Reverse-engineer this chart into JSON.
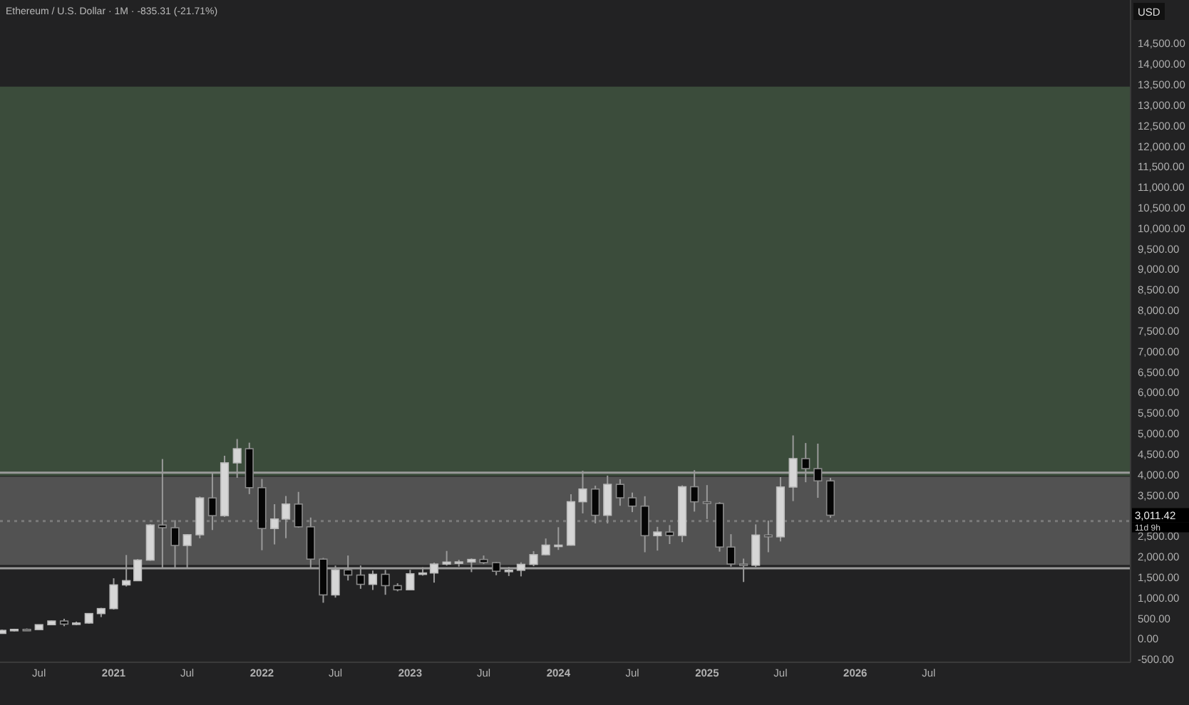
{
  "chart_data": {
    "type": "candlestick",
    "title": "Ethereum / U.S. Dollar · 1M · -835.31 (-21.71%)",
    "ylabel": "USD",
    "x": [
      "2020-04",
      "2020-05",
      "2020-06",
      "2020-07",
      "2020-08",
      "2020-09",
      "2020-10",
      "2020-11",
      "2020-12",
      "2021-01",
      "2021-02",
      "2021-03",
      "2021-04",
      "2021-05",
      "2021-06",
      "2021-07",
      "2021-08",
      "2021-09",
      "2021-10",
      "2021-11",
      "2021-12",
      "2022-01",
      "2022-02",
      "2022-03",
      "2022-04",
      "2022-05",
      "2022-06",
      "2022-07",
      "2022-08",
      "2022-09",
      "2022-10",
      "2022-11",
      "2022-12",
      "2023-01",
      "2023-02",
      "2023-03",
      "2023-04",
      "2023-05",
      "2023-06",
      "2023-07",
      "2023-08",
      "2023-09",
      "2023-10",
      "2023-11",
      "2023-12",
      "2024-01",
      "2024-02",
      "2024-03",
      "2024-04",
      "2024-05",
      "2024-06",
      "2024-07",
      "2024-08",
      "2024-09",
      "2024-10",
      "2024-11",
      "2024-12",
      "2025-01",
      "2025-02",
      "2025-03",
      "2025-04",
      "2025-05",
      "2025-06",
      "2025-07",
      "2025-08",
      "2025-09",
      "2025-10",
      "2025-11"
    ],
    "ohlc": [
      [
        133,
        227,
        130,
        207
      ],
      [
        207,
        246,
        182,
        231
      ],
      [
        231,
        253,
        217,
        226
      ],
      [
        226,
        349,
        223,
        345
      ],
      [
        345,
        445,
        340,
        435
      ],
      [
        435,
        489,
        309,
        360
      ],
      [
        360,
        421,
        335,
        386
      ],
      [
        386,
        623,
        370,
        616
      ],
      [
        616,
        755,
        531,
        737
      ],
      [
        737,
        1476,
        714,
        1314
      ],
      [
        1314,
        2042,
        1276,
        1417
      ],
      [
        1417,
        1943,
        1416,
        1919
      ],
      [
        1919,
        2797,
        1902,
        2773
      ],
      [
        2773,
        4380,
        1730,
        2707
      ],
      [
        2707,
        2891,
        1700,
        2275
      ],
      [
        2275,
        2550,
        1718,
        2536
      ],
      [
        2536,
        3467,
        2450,
        3433
      ],
      [
        3433,
        4027,
        2651,
        3001
      ],
      [
        3001,
        4460,
        2970,
        4287
      ],
      [
        4287,
        4868,
        3923,
        4631
      ],
      [
        4631,
        4778,
        3525,
        3683
      ],
      [
        3683,
        3895,
        2159,
        2688
      ],
      [
        2688,
        3280,
        2300,
        2919
      ],
      [
        2919,
        3480,
        2452,
        3283
      ],
      [
        3283,
        3580,
        2707,
        2729
      ],
      [
        2729,
        2955,
        1703,
        1942
      ],
      [
        1942,
        1972,
        880,
        1071
      ],
      [
        1071,
        1785,
        1005,
        1680
      ],
      [
        1680,
        2030,
        1422,
        1554
      ],
      [
        1554,
        1787,
        1220,
        1328
      ],
      [
        1328,
        1663,
        1191,
        1573
      ],
      [
        1573,
        1679,
        1074,
        1296
      ],
      [
        1296,
        1353,
        1160,
        1196
      ],
      [
        1196,
        1680,
        1193,
        1585
      ],
      [
        1585,
        1744,
        1541,
        1605
      ],
      [
        1605,
        1857,
        1370,
        1822
      ],
      [
        1822,
        2141,
        1785,
        1870
      ],
      [
        1870,
        1928,
        1760,
        1874
      ],
      [
        1874,
        1960,
        1626,
        1934
      ],
      [
        1934,
        2030,
        1823,
        1857
      ],
      [
        1857,
        1876,
        1550,
        1646
      ],
      [
        1646,
        1752,
        1531,
        1671
      ],
      [
        1671,
        1865,
        1522,
        1815
      ],
      [
        1815,
        2137,
        1770,
        2050
      ],
      [
        2050,
        2445,
        2036,
        2283
      ],
      [
        2283,
        2720,
        2167,
        2283
      ],
      [
        2283,
        3523,
        2270,
        3340
      ],
      [
        3340,
        4093,
        3056,
        3649
      ],
      [
        3649,
        3731,
        2812,
        3010
      ],
      [
        3010,
        3976,
        2811,
        3763
      ],
      [
        3763,
        3887,
        3242,
        3436
      ],
      [
        3436,
        3563,
        3087,
        3233
      ],
      [
        3233,
        3474,
        2110,
        2513
      ],
      [
        2513,
        2729,
        2150,
        2602
      ],
      [
        2602,
        2771,
        2309,
        2518
      ],
      [
        2518,
        3739,
        2357,
        3705
      ],
      [
        3705,
        4108,
        3100,
        3338
      ],
      [
        3338,
        3745,
        2920,
        3298
      ],
      [
        3298,
        3330,
        2125,
        2237
      ],
      [
        2237,
        2550,
        1760,
        1823
      ],
      [
        1823,
        1955,
        1385,
        1793
      ],
      [
        1793,
        2788,
        1750,
        2528
      ],
      [
        2528,
        2880,
        2110,
        2486
      ],
      [
        2486,
        3940,
        2373,
        3698
      ],
      [
        3698,
        4955,
        3355,
        4390
      ],
      [
        4390,
        4770,
        3815,
        4146
      ],
      [
        4146,
        4755,
        3435,
        3848
      ],
      [
        3848,
        3920,
        2950,
        3011.42
      ]
    ],
    "xlim": [
      "2020-03-27",
      "2027-11-10"
    ],
    "xticks": [
      {
        "value": "2020-07",
        "label": "Jul"
      },
      {
        "value": "2021-01",
        "label": "2021"
      },
      {
        "value": "2021-07",
        "label": "Jul"
      },
      {
        "value": "2022-01",
        "label": "2022"
      },
      {
        "value": "2022-07",
        "label": "Jul"
      },
      {
        "value": "2023-01",
        "label": "2023"
      },
      {
        "value": "2023-07",
        "label": "Jul"
      },
      {
        "value": "2024-01",
        "label": "2024"
      },
      {
        "value": "2024-07",
        "label": "Jul"
      },
      {
        "value": "2025-01",
        "label": "2025"
      },
      {
        "value": "2025-07",
        "label": "Jul"
      },
      {
        "value": "2026-01",
        "label": "2026"
      },
      {
        "value": "2026-07",
        "label": "Jul"
      }
    ],
    "ylim": [
      -570,
      15560
    ],
    "yticks": [
      {
        "value": -500,
        "label": "-500.00"
      },
      {
        "value": 0,
        "label": "0.00"
      },
      {
        "value": 500,
        "label": "500.00"
      },
      {
        "value": 1000,
        "label": "1,000.00"
      },
      {
        "value": 1500,
        "label": "1,500.00"
      },
      {
        "value": 2000,
        "label": "2,000.00"
      },
      {
        "value": 2500,
        "label": "2,500.00"
      },
      {
        "value": 3500,
        "label": "3,500.00"
      },
      {
        "value": 4000,
        "label": "4,000.00"
      },
      {
        "value": 4500,
        "label": "4,500.00"
      },
      {
        "value": 5000,
        "label": "5,000.00"
      },
      {
        "value": 5500,
        "label": "5,500.00"
      },
      {
        "value": 6000,
        "label": "6,000.00"
      },
      {
        "value": 6500,
        "label": "6,500.00"
      },
      {
        "value": 7000,
        "label": "7,000.00"
      },
      {
        "value": 7500,
        "label": "7,500.00"
      },
      {
        "value": 8000,
        "label": "8,000.00"
      },
      {
        "value": 8500,
        "label": "8,500.00"
      },
      {
        "value": 9000,
        "label": "9,000.00"
      },
      {
        "value": 9500,
        "label": "9,500.00"
      },
      {
        "value": 10000,
        "label": "10,000.00"
      },
      {
        "value": 10500,
        "label": "10,500.00"
      },
      {
        "value": 11000,
        "label": "11,000.00"
      },
      {
        "value": 11500,
        "label": "11,500.00"
      },
      {
        "value": 12000,
        "label": "12,000.00"
      },
      {
        "value": 12500,
        "label": "12,500.00"
      },
      {
        "value": 13000,
        "label": "13,000.00"
      },
      {
        "value": 13500,
        "label": "13,500.00"
      },
      {
        "value": 14000,
        "label": "14,000.00"
      },
      {
        "value": 14500,
        "label": "14,500.00"
      }
    ],
    "bands": [
      {
        "axis": "y",
        "from": 1800,
        "to": 3950,
        "color": "#5a5a5a"
      },
      {
        "axis": "y",
        "from": 3970,
        "to": 13450,
        "color": "#3f5440"
      }
    ],
    "ref_lines": [
      {
        "axis": "y",
        "value": 4050,
        "color": "#9a9a9a"
      },
      {
        "axis": "y",
        "value": 1720,
        "color": "#9a9a9a"
      },
      {
        "axis": "y",
        "value": 2870,
        "color": "#7a7a7a",
        "line_style": "dotted"
      }
    ],
    "annotations": [
      "3,011.42",
      "11d 9h"
    ]
  }
}
